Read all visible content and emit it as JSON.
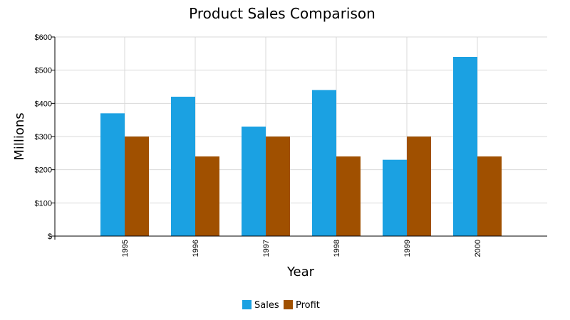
{
  "chart_data": {
    "type": "bar",
    "title": "Product Sales Comparison",
    "xlabel": "Year",
    "ylabel": "Millions",
    "categories": [
      "1995",
      "1996",
      "1997",
      "1998",
      "1999",
      "2000"
    ],
    "series": [
      {
        "name": "Sales",
        "color": "#1ba1e2",
        "values": [
          370,
          420,
          330,
          440,
          230,
          540
        ]
      },
      {
        "name": "Profit",
        "color": "#a05000",
        "values": [
          300,
          240,
          300,
          240,
          300,
          240
        ]
      }
    ],
    "ylim": [
      0,
      600
    ],
    "yticks": [
      0,
      100,
      200,
      300,
      400,
      500,
      600
    ],
    "ytick_labels": [
      "$",
      "$100",
      "$200",
      "$300",
      "$400",
      "$500",
      "$600"
    ],
    "grid": true,
    "legend_position": "bottom-center"
  }
}
